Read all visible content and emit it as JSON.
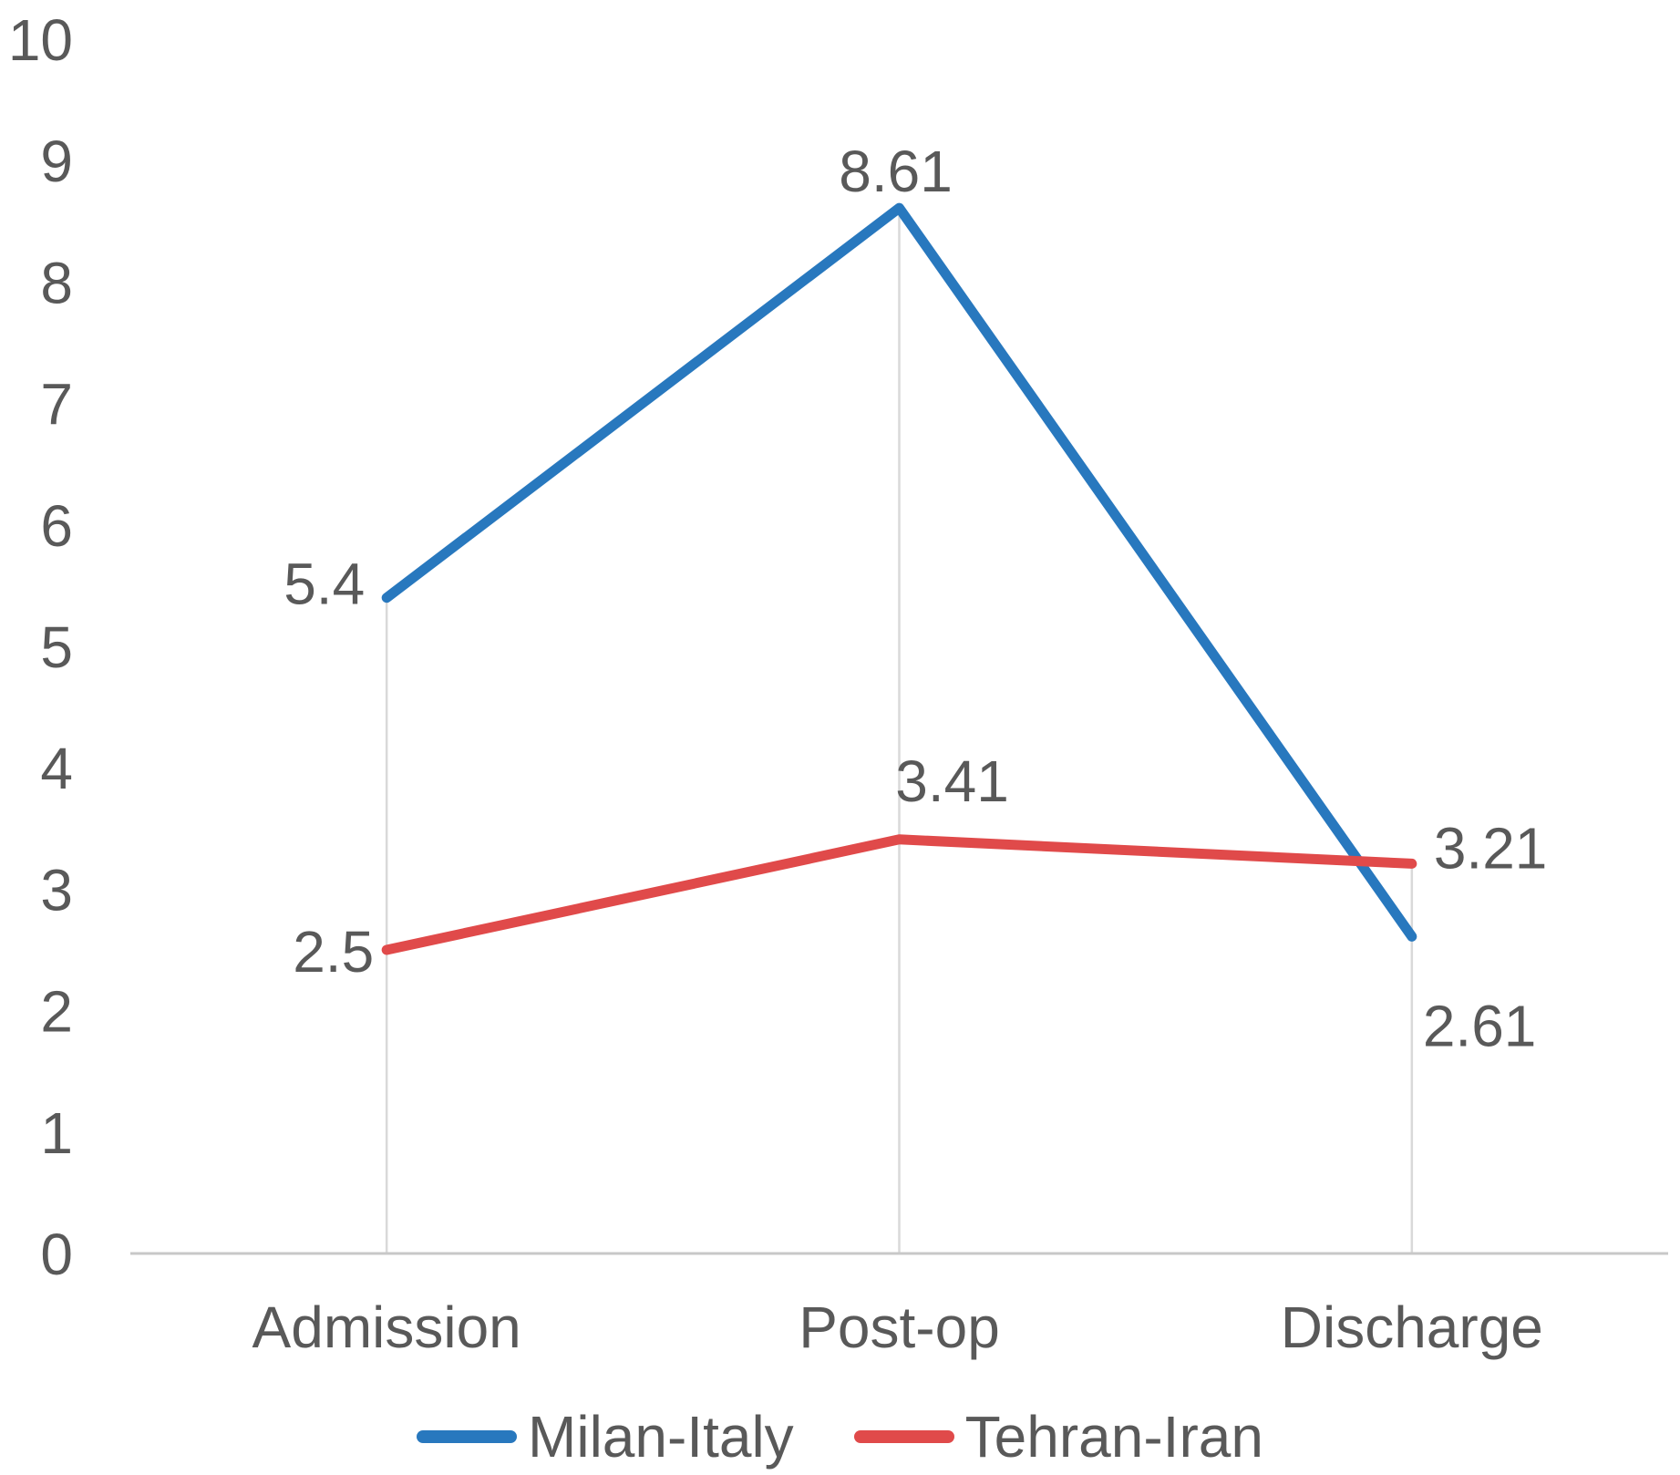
{
  "chart_data": {
    "type": "line",
    "title": "",
    "xlabel": "",
    "ylabel": "",
    "categories": [
      "Admission",
      "Post-op",
      "Discharge"
    ],
    "series": [
      {
        "name": "Milan-Italy",
        "color": "#2878BE",
        "values": [
          5.4,
          8.61,
          2.61
        ],
        "point_labels": [
          "5.4",
          "8.61",
          "2.61"
        ]
      },
      {
        "name": "Tehran-Iran",
        "color": "#E04A4A",
        "values": [
          2.5,
          3.41,
          3.21
        ],
        "point_labels": [
          "2.5",
          "3.41",
          "3.21"
        ]
      }
    ],
    "ylim": [
      0,
      10
    ],
    "ytick_labels": [
      "0",
      "1",
      "2",
      "3",
      "4",
      "5",
      "6",
      "7",
      "8",
      "9",
      "10"
    ],
    "grid": "vertical drop line at each category from top series point to baseline",
    "legend_position": "bottom-center"
  },
  "style_colors": {
    "label_text": "#595959",
    "axis_line": "#C8C8C8",
    "drop_line": "#D9D9D9",
    "background": "#FFFFFF"
  }
}
